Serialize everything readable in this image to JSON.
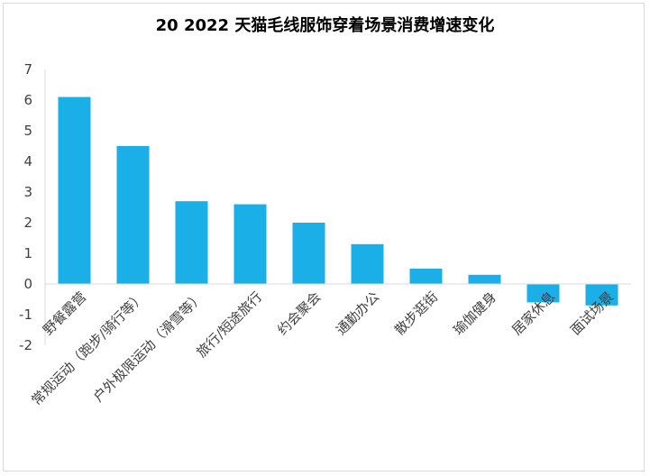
{
  "chart_data": {
    "type": "bar",
    "title": "20 2022 天猫毛线服饰穿着场景消费增速变化",
    "xlabel": "",
    "ylabel": "",
    "categories": [
      "野餐露营",
      "常规运动（跑步/骑行等）",
      "户外极限运动（滑雪等）",
      "旅行/短途旅行",
      "约会聚会",
      "通勤办公",
      "散步逛街",
      "瑜伽健身",
      "居家休息",
      "面试场景"
    ],
    "values": [
      6.1,
      4.5,
      2.7,
      2.6,
      2.0,
      1.3,
      0.5,
      0.3,
      -0.6,
      -0.7
    ],
    "ylim": [
      -2,
      7
    ],
    "yticks": [
      "-2",
      "-1",
      "0",
      "1",
      "2",
      "3",
      "4",
      "5",
      "6",
      "7"
    ],
    "grid": false,
    "legend": "none",
    "bar_color": "#1aafe6",
    "axis_color": "#d9d9d9"
  }
}
